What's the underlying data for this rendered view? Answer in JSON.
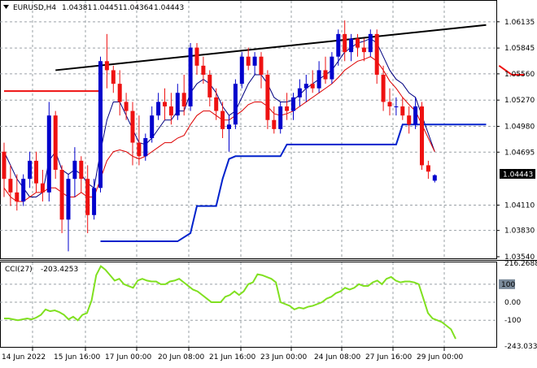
{
  "header": {
    "symbol_label": "EURUSD,H4",
    "open": "1.04381",
    "high": "1.04451",
    "low": "1.04364",
    "close": "1.04443"
  },
  "indicator": {
    "label": "CCI(27)",
    "value": "-203.4253",
    "levels": [
      "216.2688",
      "100",
      "0.00",
      "-100",
      "-243.033"
    ],
    "level_values": [
      216.27,
      100,
      0,
      -100,
      -243.03
    ],
    "line_color": "#80e020"
  },
  "price_axis": {
    "labels": [
      "1.06135",
      "1.05845",
      "1.05560",
      "1.05270",
      "1.04980",
      "1.04695",
      "1.04110",
      "1.03830",
      "1.03540"
    ],
    "current_price_label": "1.04443"
  },
  "time_axis": {
    "labels": [
      "14 Jun 2022",
      "15 Jun 16:00",
      "17 Jun 00:00",
      "20 Jun 08:00",
      "21 Jun 16:00",
      "23 Jun 00:00",
      "24 Jun 08:00",
      "27 Jun 16:00",
      "29 Jun 00:00"
    ]
  },
  "colors": {
    "bull": "#0000cc",
    "bear": "#ee1111",
    "ma_fast": "#000080",
    "ma_slow": "#dd0000",
    "stop_line": "#0022cc",
    "trendline": "#000000",
    "cci": "#80e020",
    "current_price_bg": "#000000"
  },
  "chart_data": {
    "type": "candlestick",
    "symbol": "EURUSD",
    "timeframe": "H4",
    "ylim": [
      1.0354,
      1.0625
    ],
    "candles": [
      [
        1.047,
        1.048,
        1.042,
        1.044
      ],
      [
        1.044,
        1.0455,
        1.041,
        1.0425
      ],
      [
        1.0425,
        1.0445,
        1.0405,
        1.0415
      ],
      [
        1.0415,
        1.0445,
        1.041,
        1.044
      ],
      [
        1.044,
        1.047,
        1.043,
        1.046
      ],
      [
        1.046,
        1.047,
        1.0425,
        1.0435
      ],
      [
        1.0435,
        1.045,
        1.0415,
        1.0425
      ],
      [
        1.0425,
        1.0525,
        1.0415,
        1.051
      ],
      [
        1.051,
        1.0515,
        1.044,
        1.045
      ],
      [
        1.045,
        1.0455,
        1.038,
        1.0395
      ],
      [
        1.0395,
        1.0445,
        1.036,
        1.044
      ],
      [
        1.044,
        1.0475,
        1.042,
        1.046
      ],
      [
        1.046,
        1.0465,
        1.0425,
        1.044
      ],
      [
        1.044,
        1.0455,
        1.038,
        1.04
      ],
      [
        1.04,
        1.044,
        1.0395,
        1.043
      ],
      [
        1.043,
        1.0575,
        1.0425,
        1.057
      ],
      [
        1.057,
        1.06,
        1.054,
        1.056
      ],
      [
        1.056,
        1.0565,
        1.0535,
        1.0545
      ],
      [
        1.0545,
        1.056,
        1.051,
        1.0525
      ],
      [
        1.0525,
        1.0535,
        1.0505,
        1.0515
      ],
      [
        1.0515,
        1.0525,
        1.0455,
        1.048
      ],
      [
        1.048,
        1.051,
        1.0455,
        1.0465
      ],
      [
        1.0465,
        1.049,
        1.046,
        1.0485
      ],
      [
        1.0485,
        1.052,
        1.048,
        1.051
      ],
      [
        1.051,
        1.0535,
        1.0505,
        1.0525
      ],
      [
        1.0525,
        1.054,
        1.0505,
        1.052
      ],
      [
        1.052,
        1.0535,
        1.05,
        1.051
      ],
      [
        1.051,
        1.0545,
        1.0505,
        1.0535
      ],
      [
        1.0535,
        1.0555,
        1.051,
        1.052
      ],
      [
        1.052,
        1.059,
        1.0515,
        1.0585
      ],
      [
        1.0585,
        1.059,
        1.0555,
        1.0565
      ],
      [
        1.0565,
        1.0575,
        1.0545,
        1.0555
      ],
      [
        1.0555,
        1.056,
        1.052,
        1.053
      ],
      [
        1.053,
        1.054,
        1.0505,
        1.0515
      ],
      [
        1.0515,
        1.0525,
        1.0485,
        1.0495
      ],
      [
        1.0495,
        1.051,
        1.047,
        1.05
      ],
      [
        1.05,
        1.055,
        1.0495,
        1.0545
      ],
      [
        1.0545,
        1.058,
        1.054,
        1.0575
      ],
      [
        1.0575,
        1.0585,
        1.056,
        1.0565
      ],
      [
        1.0565,
        1.058,
        1.0555,
        1.0575
      ],
      [
        1.0575,
        1.058,
        1.054,
        1.0555
      ],
      [
        1.0555,
        1.056,
        1.0495,
        1.0505
      ],
      [
        1.0505,
        1.052,
        1.049,
        1.0495
      ],
      [
        1.0495,
        1.0525,
        1.049,
        1.052
      ],
      [
        1.052,
        1.0535,
        1.0505,
        1.0515
      ],
      [
        1.0515,
        1.0535,
        1.0505,
        1.053
      ],
      [
        1.053,
        1.055,
        1.052,
        1.054
      ],
      [
        1.054,
        1.0555,
        1.0525,
        1.0545
      ],
      [
        1.0545,
        1.056,
        1.0535,
        1.054
      ],
      [
        1.054,
        1.057,
        1.0535,
        1.056
      ],
      [
        1.056,
        1.0575,
        1.0545,
        1.055
      ],
      [
        1.055,
        1.058,
        1.0545,
        1.0575
      ],
      [
        1.0575,
        1.0605,
        1.0565,
        1.06
      ],
      [
        1.06,
        1.0615,
        1.057,
        1.058
      ],
      [
        1.058,
        1.06,
        1.057,
        1.0595
      ],
      [
        1.0595,
        1.06,
        1.0575,
        1.0585
      ],
      [
        1.0585,
        1.0595,
        1.057,
        1.058
      ],
      [
        1.058,
        1.0605,
        1.0575,
        1.06
      ],
      [
        1.06,
        1.0605,
        1.0545,
        1.0555
      ],
      [
        1.0555,
        1.0565,
        1.0515,
        1.0525
      ],
      [
        1.0525,
        1.054,
        1.051,
        1.052
      ],
      [
        1.052,
        1.053,
        1.051,
        1.052
      ],
      [
        1.052,
        1.053,
        1.0505,
        1.051
      ],
      [
        1.051,
        1.052,
        1.049,
        1.05
      ],
      [
        1.05,
        1.053,
        1.0495,
        1.052
      ],
      [
        1.052,
        1.0525,
        1.045,
        1.0455
      ],
      [
        1.0455,
        1.046,
        1.044,
        1.0448
      ],
      [
        1.0438,
        1.0445,
        1.0436,
        1.0444
      ]
    ],
    "ma_fast": [
      1.047,
      1.0455,
      1.044,
      1.043,
      1.042,
      1.042,
      1.0425,
      1.046,
      1.047,
      1.045,
      1.0445,
      1.045,
      1.0445,
      1.0435,
      1.043,
      1.047,
      1.0505,
      1.0525,
      1.0525,
      1.051,
      1.0495,
      1.048,
      1.0478,
      1.0485,
      1.0495,
      1.0505,
      1.0505,
      1.0515,
      1.0515,
      1.0535,
      1.0545,
      1.055,
      1.0545,
      1.0535,
      1.052,
      1.051,
      1.0515,
      1.053,
      1.0545,
      1.0555,
      1.0555,
      1.0545,
      1.053,
      1.0525,
      1.0525,
      1.0527,
      1.0533,
      1.054,
      1.0545,
      1.055,
      1.0555,
      1.056,
      1.057,
      1.058,
      1.0585,
      1.059,
      1.0592,
      1.0595,
      1.059,
      1.0575,
      1.056,
      1.055,
      1.0545,
      1.0535,
      1.053,
      1.051,
      1.049,
      1.047
    ],
    "ma_slow": [
      1.043,
      1.042,
      1.0415,
      1.0415,
      1.042,
      1.0425,
      1.0425,
      1.043,
      1.043,
      1.0425,
      1.042,
      1.042,
      1.0425,
      1.042,
      1.042,
      1.044,
      1.046,
      1.047,
      1.0472,
      1.047,
      1.0465,
      1.0462,
      1.0465,
      1.047,
      1.0475,
      1.048,
      1.048,
      1.0485,
      1.0488,
      1.05,
      1.051,
      1.0515,
      1.0515,
      1.051,
      1.0505,
      1.0505,
      1.051,
      1.0515,
      1.0522,
      1.0525,
      1.0525,
      1.052,
      1.0512,
      1.051,
      1.0512,
      1.0515,
      1.052,
      1.0525,
      1.053,
      1.0535,
      1.054,
      1.0545,
      1.0552,
      1.056,
      1.0565,
      1.057,
      1.0572,
      1.0575,
      1.057,
      1.056,
      1.0548,
      1.054,
      1.053,
      1.0522,
      1.0515,
      1.05,
      1.0485,
      1.047
    ],
    "stop_line": {
      "lower": [
        [
          15,
          1.0371
        ],
        [
          27,
          1.0371
        ],
        [
          29,
          1.038
        ],
        [
          30,
          1.041
        ],
        [
          33,
          1.041
        ],
        [
          34,
          1.044
        ],
        [
          35,
          1.0462
        ],
        [
          36,
          1.0465
        ],
        [
          43,
          1.0465
        ],
        [
          44,
          1.0478
        ],
        [
          61,
          1.0478
        ],
        [
          62,
          1.05
        ],
        [
          73,
          1.05
        ],
        [
          75,
          1.05
        ]
      ],
      "upper_segments": [
        [
          [
            0,
            1.0537
          ],
          [
            15,
            1.0537
          ]
        ],
        [
          [
            77,
            1.0565
          ],
          [
            79,
            1.0555
          ],
          [
            81,
            1.0555
          ]
        ]
      ]
    },
    "trendline": [
      [
        8,
        1.056
      ],
      [
        75,
        1.061
      ]
    ],
    "cci_values": [
      -90,
      -90,
      -95,
      -100,
      -95,
      -90,
      -95,
      -85,
      -70,
      -40,
      -50,
      -45,
      -55,
      -70,
      -95,
      -80,
      -100,
      -70,
      -60,
      10,
      150,
      200,
      180,
      150,
      120,
      130,
      100,
      90,
      80,
      120,
      130,
      120,
      115,
      115,
      100,
      100,
      115,
      120,
      130,
      110,
      90,
      70,
      60,
      40,
      20,
      0,
      0,
      0,
      30,
      40,
      60,
      40,
      60,
      100,
      110,
      155,
      150,
      140,
      130,
      110,
      0,
      -10,
      -20,
      -40,
      -30,
      -35,
      -25,
      -20,
      -10,
      0,
      20,
      30,
      50,
      60,
      80,
      70,
      80,
      100,
      90,
      90,
      110,
      120,
      100,
      130,
      140,
      120,
      110,
      115,
      115,
      110,
      100,
      20,
      -60,
      -90,
      -100,
      -110,
      -130,
      -150,
      -203
    ]
  }
}
